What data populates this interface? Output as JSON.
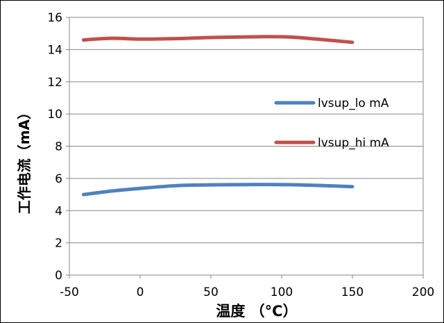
{
  "chart_data": {
    "type": "line",
    "title": "",
    "xlabel": "温度 （°C）",
    "ylabel": "工作电流（mA）",
    "xlim": [
      -50,
      200
    ],
    "ylim": [
      0,
      16
    ],
    "x_ticks": [
      "-50",
      "0",
      "50",
      "100",
      "150",
      "200"
    ],
    "y_ticks": [
      "0",
      "2",
      "4",
      "6",
      "8",
      "10",
      "12",
      "14",
      "16"
    ],
    "grid": true,
    "legend_position": "right",
    "series": [
      {
        "name": "lvsup_lo mA",
        "color": "#4f81bd",
        "x": [
          -40,
          -20,
          0,
          25,
          50,
          85,
          105,
          125,
          150
        ],
        "y": [
          5.0,
          5.22,
          5.38,
          5.55,
          5.6,
          5.62,
          5.61,
          5.57,
          5.49
        ]
      },
      {
        "name": "lvsup_hi mA",
        "color": "#c0504d",
        "x": [
          -40,
          -20,
          0,
          25,
          50,
          85,
          105,
          125,
          150
        ],
        "y": [
          14.6,
          14.7,
          14.65,
          14.68,
          14.75,
          14.8,
          14.78,
          14.65,
          14.45
        ]
      }
    ]
  }
}
